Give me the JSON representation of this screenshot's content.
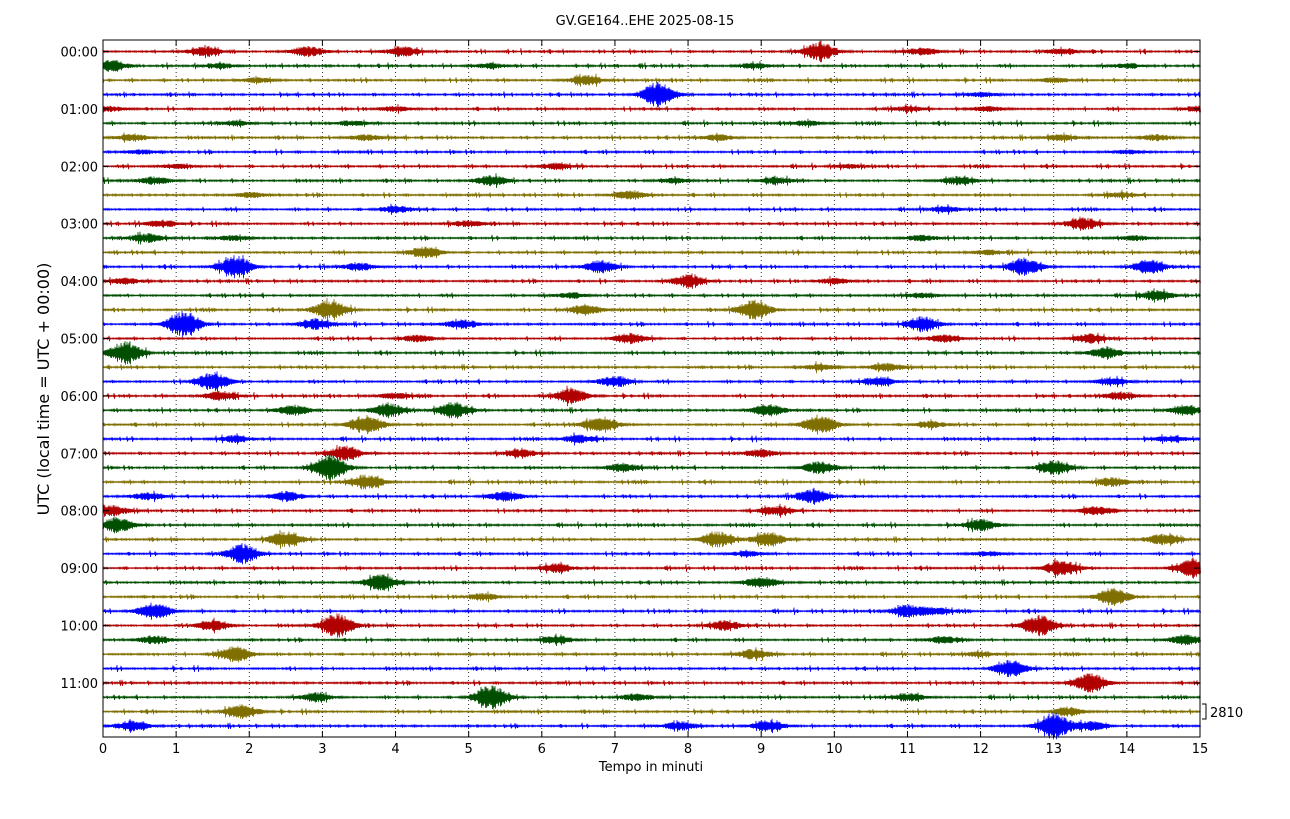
{
  "chart_data": {
    "type": "line",
    "title": "GV.GE164..EHE 2025-08-15",
    "xlabel": "Tempo in minuti",
    "ylabel": "UTC (local time = UTC + 00:00)",
    "xlim": [
      0,
      15
    ],
    "x_ticks": [
      "0",
      "1",
      "2",
      "3",
      "4",
      "5",
      "6",
      "7",
      "8",
      "9",
      "10",
      "11",
      "12",
      "13",
      "14",
      "15"
    ],
    "y_ticks": [
      "00:00",
      "01:00",
      "02:00",
      "03:00",
      "04:00",
      "05:00",
      "06:00",
      "07:00",
      "08:00",
      "09:00",
      "10:00",
      "11:00"
    ],
    "trace_count": 48,
    "trace_interval_minutes": 15,
    "colors": [
      "#b00000",
      "#004f00",
      "#7f6f00",
      "#0000ff"
    ],
    "scale_label": "2810",
    "grid": "vertical dotted lines at each minute",
    "bursts": [
      [
        [
          1.4,
          1
        ],
        [
          2.8,
          1
        ],
        [
          4.1,
          1
        ],
        [
          9.8,
          1.8
        ],
        [
          11.2,
          0.7
        ],
        [
          13.1,
          0.6
        ]
      ],
      [
        [
          0.1,
          1.2
        ],
        [
          1.6,
          0.5
        ],
        [
          5.3,
          0.5
        ],
        [
          8.9,
          0.5
        ],
        [
          14.0,
          0.5
        ]
      ],
      [
        [
          2.1,
          0.5
        ],
        [
          6.6,
          0.9
        ],
        [
          13.0,
          0.5
        ]
      ],
      [
        [
          7.6,
          2.6
        ],
        [
          12.0,
          0.4
        ]
      ],
      [
        [
          0.1,
          0.5
        ],
        [
          4.0,
          0.5
        ],
        [
          11.0,
          0.5
        ],
        [
          12.1,
          0.5
        ],
        [
          15.0,
          0.6
        ]
      ],
      [
        [
          1.8,
          0.5
        ],
        [
          3.4,
          0.5
        ],
        [
          9.6,
          0.5
        ]
      ],
      [
        [
          0.4,
          0.7
        ],
        [
          3.6,
          0.6
        ],
        [
          8.4,
          0.6
        ],
        [
          13.1,
          0.6
        ],
        [
          14.4,
          0.6
        ]
      ],
      [
        [
          0.5,
          0.4
        ],
        [
          14.0,
          0.4
        ]
      ],
      [
        [
          1.0,
          0.5
        ],
        [
          6.2,
          0.6
        ],
        [
          10.2,
          0.4
        ]
      ],
      [
        [
          0.7,
          0.8
        ],
        [
          5.3,
          1.0
        ],
        [
          7.8,
          0.5
        ],
        [
          9.2,
          0.7
        ],
        [
          11.7,
          0.8
        ]
      ],
      [
        [
          2.0,
          0.5
        ],
        [
          7.2,
          0.9
        ],
        [
          13.9,
          0.5
        ]
      ],
      [
        [
          4.0,
          0.7
        ],
        [
          11.5,
          0.6
        ]
      ],
      [
        [
          0.8,
          0.7
        ],
        [
          5.0,
          0.6
        ],
        [
          13.4,
          1.2
        ]
      ],
      [
        [
          0.6,
          0.9
        ],
        [
          1.8,
          0.5
        ],
        [
          11.2,
          0.6
        ],
        [
          14.1,
          0.5
        ]
      ],
      [
        [
          4.4,
          1.1
        ],
        [
          12.1,
          0.5
        ]
      ],
      [
        [
          1.8,
          2.2
        ],
        [
          3.5,
          0.8
        ],
        [
          6.8,
          1.2
        ],
        [
          12.6,
          1.7
        ],
        [
          14.3,
          1.4
        ]
      ],
      [
        [
          0.3,
          0.6
        ],
        [
          8.0,
          1.2
        ],
        [
          10.0,
          0.6
        ]
      ],
      [
        [
          6.4,
          0.6
        ],
        [
          11.2,
          0.5
        ],
        [
          14.4,
          1.1
        ]
      ],
      [
        [
          3.1,
          2.0
        ],
        [
          6.6,
          1.1
        ],
        [
          8.9,
          1.9
        ]
      ],
      [
        [
          1.1,
          2.5
        ],
        [
          2.9,
          1.0
        ],
        [
          4.9,
          0.9
        ],
        [
          11.2,
          1.5
        ]
      ],
      [
        [
          4.3,
          0.7
        ],
        [
          7.2,
          1.0
        ],
        [
          11.5,
          0.8
        ],
        [
          13.5,
          0.9
        ]
      ],
      [
        [
          0.3,
          2.1
        ],
        [
          13.7,
          1.1
        ]
      ],
      [
        [
          9.8,
          0.6
        ],
        [
          10.7,
          0.8
        ]
      ],
      [
        [
          1.5,
          1.8
        ],
        [
          7.0,
          1.1
        ],
        [
          10.6,
          0.9
        ],
        [
          13.8,
          0.7
        ]
      ],
      [
        [
          1.6,
          0.9
        ],
        [
          4.0,
          0.6
        ],
        [
          6.4,
          1.5
        ],
        [
          13.9,
          0.8
        ]
      ],
      [
        [
          2.6,
          1.0
        ],
        [
          3.9,
          1.3
        ],
        [
          4.8,
          1.6
        ],
        [
          9.1,
          1.2
        ],
        [
          14.8,
          1.0
        ]
      ],
      [
        [
          3.6,
          1.9
        ],
        [
          6.8,
          1.7
        ],
        [
          9.8,
          2.0
        ],
        [
          11.3,
          0.7
        ]
      ],
      [
        [
          1.8,
          0.7
        ],
        [
          6.5,
          0.8
        ],
        [
          14.6,
          0.6
        ]
      ],
      [
        [
          3.3,
          1.4
        ],
        [
          5.7,
          0.8
        ],
        [
          9.0,
          0.7
        ]
      ],
      [
        [
          3.1,
          2.6
        ],
        [
          7.1,
          0.9
        ],
        [
          9.8,
          1.2
        ],
        [
          13.0,
          1.4
        ]
      ],
      [
        [
          3.6,
          1.5
        ],
        [
          13.8,
          0.9
        ]
      ],
      [
        [
          0.6,
          0.7
        ],
        [
          2.5,
          1.0
        ],
        [
          5.5,
          1.0
        ],
        [
          9.7,
          1.4
        ]
      ],
      [
        [
          0.1,
          1.1
        ],
        [
          9.2,
          0.9
        ],
        [
          13.6,
          0.9
        ]
      ],
      [
        [
          0.2,
          1.5
        ],
        [
          12.0,
          1.1
        ]
      ],
      [
        [
          2.5,
          1.6
        ],
        [
          8.4,
          1.5
        ],
        [
          9.1,
          1.4
        ],
        [
          14.5,
          1.1
        ]
      ],
      [
        [
          1.9,
          1.8
        ],
        [
          8.8,
          0.5
        ],
        [
          12.1,
          0.5
        ]
      ],
      [
        [
          6.2,
          0.9
        ],
        [
          13.1,
          1.6
        ],
        [
          14.9,
          2.0
        ]
      ],
      [
        [
          3.8,
          1.6
        ],
        [
          9.0,
          1.2
        ]
      ],
      [
        [
          5.2,
          0.7
        ],
        [
          13.8,
          1.8
        ]
      ],
      [
        [
          0.7,
          1.7
        ],
        [
          11.0,
          1.2
        ],
        [
          11.4,
          0.7
        ]
      ],
      [
        [
          1.5,
          1.1
        ],
        [
          3.2,
          2.4
        ],
        [
          8.5,
          1.0
        ],
        [
          12.8,
          2.0
        ]
      ],
      [
        [
          0.7,
          0.8
        ],
        [
          6.2,
          0.8
        ],
        [
          11.5,
          0.7
        ],
        [
          14.8,
          1.0
        ]
      ],
      [
        [
          1.8,
          1.6
        ],
        [
          8.9,
          1.0
        ],
        [
          12.0,
          0.5
        ]
      ],
      [
        [
          12.4,
          1.7
        ]
      ],
      [
        [
          13.5,
          1.9
        ]
      ],
      [
        [
          2.9,
          0.9
        ],
        [
          5.3,
          2.4
        ],
        [
          7.3,
          0.7
        ],
        [
          11.0,
          0.8
        ]
      ],
      [
        [
          1.9,
          1.4
        ],
        [
          13.2,
          0.9
        ]
      ],
      [
        [
          0.4,
          1.0
        ],
        [
          7.9,
          0.8
        ],
        [
          9.1,
          1.1
        ],
        [
          13.0,
          2.6
        ],
        [
          13.5,
          0.9
        ]
      ]
    ]
  }
}
